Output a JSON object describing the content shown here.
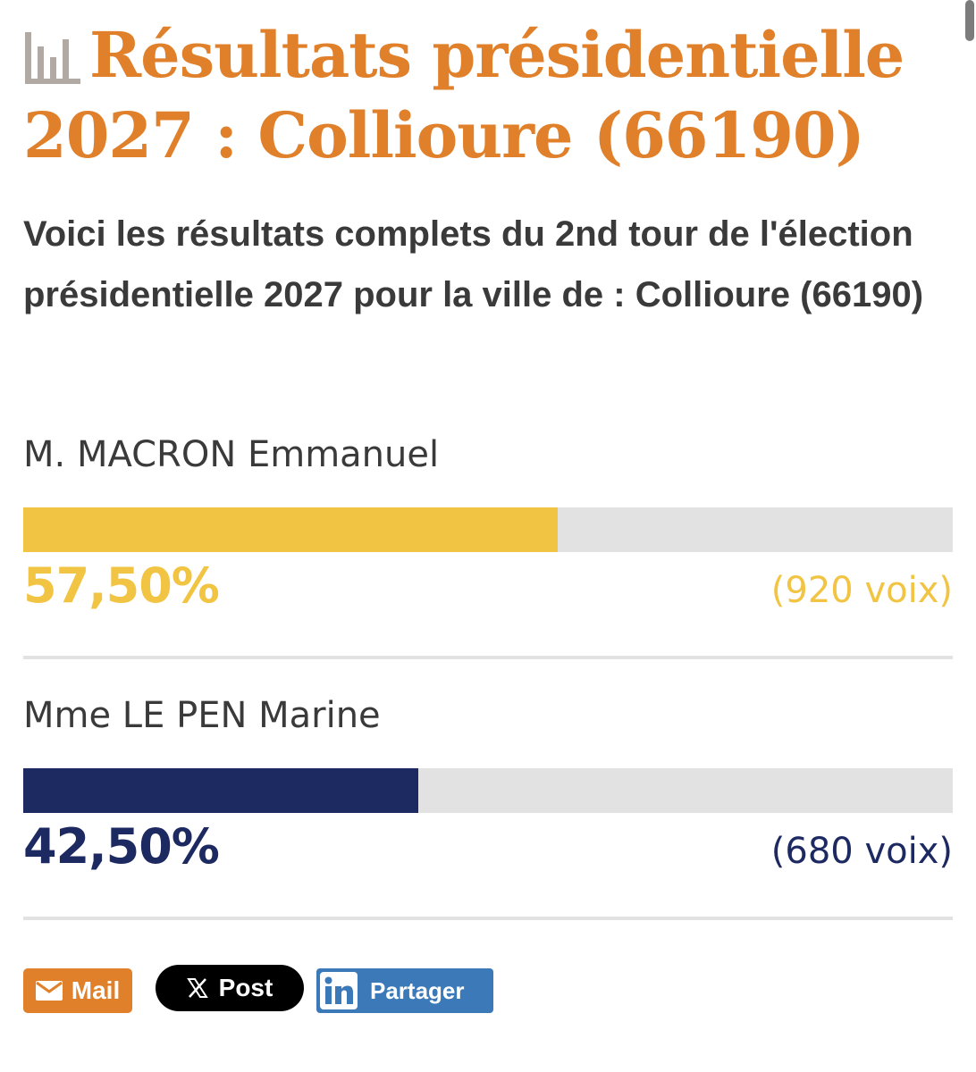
{
  "header": {
    "title": "Résultats présidentielle 2027 : Collioure (66190)",
    "icon": "bar-chart-icon",
    "title_color": "#e0802a"
  },
  "intro": {
    "text": "Voici les résultats complets du 2nd tour de l'élection présidentielle 2027 pour la ville de : Collioure (66190)"
  },
  "results": [
    {
      "name": "M. MACRON Emmanuel",
      "percent_label": "57,50%",
      "percent_value": 57.5,
      "votes_label": "(920 voix)",
      "color": "#f2c443"
    },
    {
      "name": "Mme LE PEN Marine",
      "percent_label": "42,50%",
      "percent_value": 42.5,
      "votes_label": "(680 voix)",
      "color": "#1d2961"
    }
  ],
  "share": {
    "mail": {
      "label": "Mail",
      "icon": "envelope-icon",
      "color": "#e0802a"
    },
    "post": {
      "label": "Post",
      "icon": "x-logo-icon",
      "color": "#000000"
    },
    "linkedin": {
      "label": "Partager",
      "icon": "linkedin-icon",
      "color": "#3b79b8"
    }
  }
}
